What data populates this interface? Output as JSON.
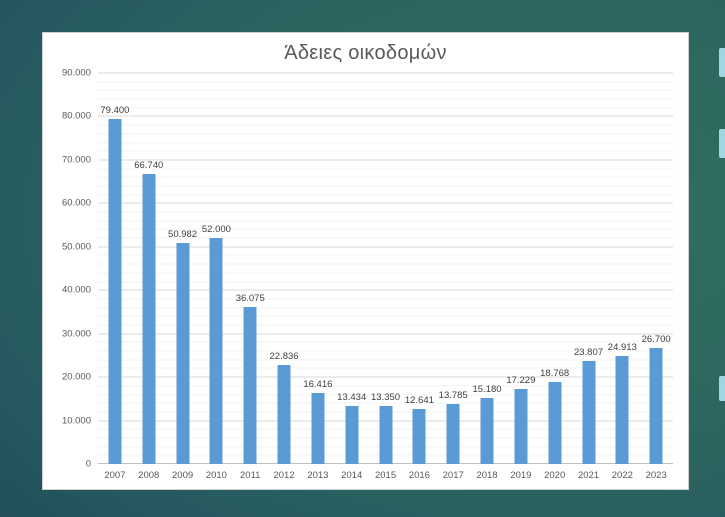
{
  "chart_data": {
    "type": "bar",
    "title": "Άδειες οικοδομών",
    "categories": [
      "2007",
      "2008",
      "2009",
      "2010",
      "2011",
      "2012",
      "2013",
      "2014",
      "2015",
      "2016",
      "2017",
      "2018",
      "2019",
      "2020",
      "2021",
      "2022",
      "2023"
    ],
    "values": [
      79400,
      66740,
      50982,
      52000,
      36075,
      22836,
      16416,
      13434,
      13350,
      12641,
      13785,
      15180,
      17229,
      18768,
      23807,
      24913,
      26700
    ],
    "value_labels": [
      "79.400",
      "66.740",
      "50.982",
      "52.000",
      "36.075",
      "22.836",
      "16.416",
      "13.434",
      "13.350",
      "12.641",
      "13.785",
      "15.180",
      "17.229",
      "18.768",
      "23.807",
      "24.913",
      "26.700"
    ],
    "xlabel": "",
    "ylabel": "",
    "ylim": [
      0,
      90000
    ],
    "ytick_step": 10000,
    "minor_gridline_step": 2000,
    "ytick_labels": [
      "0",
      "10.000",
      "20.000",
      "30.000",
      "40.000",
      "50.000",
      "60.000",
      "70.000",
      "80.000",
      "90.000"
    ],
    "grid": "horizontal, major and minor lines",
    "legend": "none",
    "bar_color": "#5b9bd5"
  },
  "colors": {
    "slide_background_teal_dark": "#15384a",
    "slide_background_teal_light": "#31705f",
    "chart_background": "#ffffff",
    "title_text": "#595959",
    "axis_text": "#595959",
    "data_label_text": "#404040",
    "major_gridline": "#d9d9d9",
    "minor_gridline": "#f3f3f3",
    "edge_tab_blue": "#a2d5e2"
  },
  "decorations": {
    "edge_tab_count": 3
  }
}
